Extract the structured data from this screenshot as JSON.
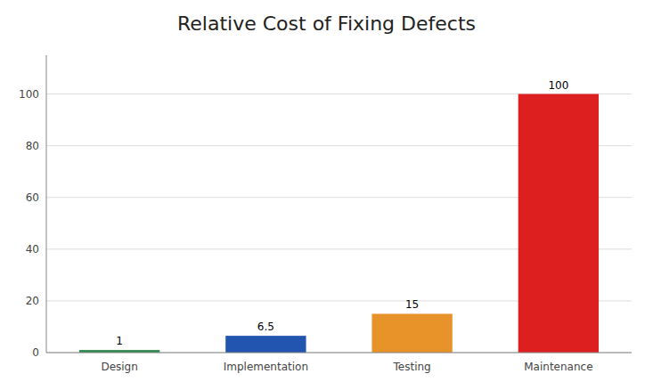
{
  "chart_data": {
    "type": "bar",
    "title": "Relative Cost of Fixing Defects",
    "categories": [
      "Design",
      "Implementation",
      "Testing",
      "Maintenance"
    ],
    "values": [
      1,
      6.5,
      15,
      100
    ],
    "colors": [
      "#2e8b50",
      "#2255b0",
      "#e8922a",
      "#dd1f1f"
    ],
    "ylim": [
      0,
      115
    ],
    "yticks": [
      0,
      20,
      40,
      60,
      80,
      100
    ],
    "grid": true,
    "data_labels": true
  }
}
